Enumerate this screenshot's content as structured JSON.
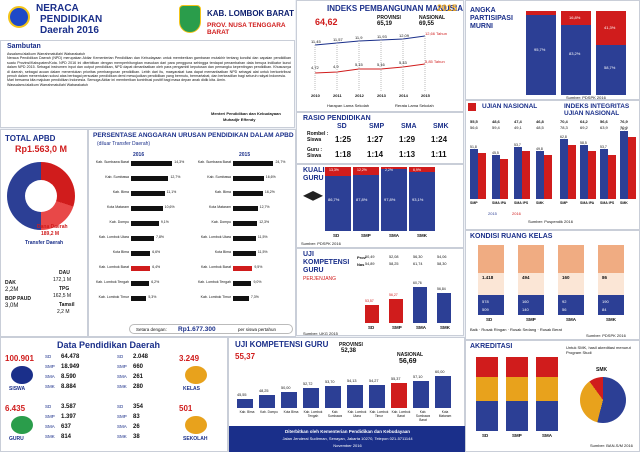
{
  "header": {
    "title1": "NERACA",
    "title2": "PENDIDIKAN",
    "title3": "Daerah 2016",
    "region1": "KAB. LOMBOK BARAT",
    "region2": "PROV. NUSA TENGGARA BARAT"
  },
  "ipm": {
    "title": "INDEKS PEMBANGUNAN MANUSIA",
    "year": "2015",
    "value": "64,62",
    "prov_label": "PROVINSI",
    "prov_value": "65,19",
    "nas_label": "NASIONAL",
    "nas_value": "69,55",
    "top_values": [
      "11,45",
      "11,57",
      "11,9",
      "11,93",
      "12,09"
    ],
    "top_end": "12,66 Tahun",
    "bottom_values": [
      "4,72",
      "4,9",
      "5,15",
      "5,16",
      "5,43"
    ],
    "bottom_end": "5,85 Tahun",
    "years": [
      "2010",
      "2011",
      "2012",
      "2013",
      "2014",
      "2015"
    ],
    "legend1": "Harapan Lama Sekolah",
    "legend2": "Rerata Lama Sekolah"
  },
  "apm": {
    "title1": "ANGKA",
    "title2": "PARTISIPASI",
    "title3": "MURNI",
    "source": "Sumber: PDSPK 2016",
    "cols": [
      {
        "top": "4,3%",
        "bottom": "95,7%"
      },
      {
        "top": "16,8%",
        "bottom": "83,2%"
      },
      {
        "top": "41,3%",
        "bottom": "58,7%"
      }
    ]
  },
  "sambutan": {
    "title": "Sambutan",
    "greeting": "Assalamu'alaikum Warrahmatullahi Wabarakatuh",
    "para1": "Neraca Pendidikan Daerah (NPD) merupakan Aktiar Kementerian Pendidikan dan Kebudayaan untuk memberikan gambaran mutakhir tentang kondisi dan capaian pendidikan suatu Provinsi/Kabupaten/Kota. NPD 2016 ini diterbitkan dengan memperhitungkan masukan dari para pengguna sehingga terdapat penambahan data berupa indikator kunci dalam NPD 2015. Sebagai instrumen input dan output pendidikan, NPD dapat dimanfaatkan oleh para pengambil keputusan dan pemangku kepentingan pendidikan. Khususnya di daerah, sebagai acuan dalam menentukan prioritas pembangunan pendidikan. Lebih dari itu, masyarakat luas dapat memanfaatkan NPD sebagai alat untuk berkontribusi penuh dalam menentukan solusi atas berbagai persoalan pendidikan demi mewujudkan pendidikan yang bermutu, bermartabat, dan berkeadilan bagi seluruh rakyat Indonesia.",
    "para2": "Mari bersama kita majukan pendidikan Indonesia. Semoga Aktiar ini memberikan kontribusi positif bagi masa depan anak didik kita. Amin.",
    "closing": "Wassalamu'alaikum Warrahmatullahi Wabarakatuh",
    "signature1": "Menteri Pendidikan dan Kebudayaan",
    "signature2": "Muhadjir Effendy"
  },
  "apbd": {
    "title": "TOTAL APBD",
    "value": "Rp1.563,0 M",
    "daerah_label": "Dana Daerah",
    "daerah_value": "189,2 M",
    "transfer_label": "Transfer Daerah",
    "dak_label": "DAK",
    "dak_value": "2,2M",
    "bop_label": "BOP PAUD",
    "bop_value": "3,0M",
    "dau_label": "DAU",
    "dau_value": "172,1 M",
    "tpg_label": "TPG",
    "tpg_value": "162,5 M",
    "tamsil_label": "Tamsil",
    "tamsil_value": "2,2 M"
  },
  "anggaran": {
    "title": "PERSENTASE ANGGARAN URUSAN PENDIDIKAN DALAM APBD",
    "subtitle": "(diluar Transfer Daerah)",
    "year1": "2016",
    "year2": "2015",
    "rows": [
      "Kab. Sumbawa Barat",
      "Kab. Sumbawa",
      "Kab. Bima",
      "Kota Mataram",
      "Kab. Dompu",
      "Kab. Lombok Utara",
      "Kota Bima",
      "Kab. Lombok Barat",
      "Kab. Lombok Tengah",
      "Kab. Lombok Timur"
    ],
    "values2016": [
      "14,3%",
      "12,7%",
      "11,1%",
      "10,6%",
      "9,1%",
      "7,8%",
      "6,6%",
      "6,4%",
      "6,2%",
      "5,3%"
    ],
    "values2015": [
      "24,7%",
      "16,6%",
      "16,2%",
      "12,7%",
      "12,3%",
      "11,5%",
      "11,5%",
      "9,5%",
      "9,0%",
      "7,3%"
    ],
    "pct2016": [
      0.86,
      0.78,
      0.7,
      0.66,
      0.58,
      0.48,
      0.4,
      0.4,
      0.38,
      0.32
    ],
    "pct2015": [
      0.92,
      0.7,
      0.68,
      0.56,
      0.55,
      0.52,
      0.52,
      0.44,
      0.42,
      0.36
    ],
    "highlight2016": 7,
    "highlight2015": 7,
    "footer_label": "Setara dengan:",
    "footer_value": "Rp1.677.300",
    "footer_unit": "per siswa pertahun"
  },
  "un": {
    "title": "UJIAN NASIONAL",
    "title2": "INDEKS INTEGRITAS UJIAN NASIONAL",
    "groups": [
      {
        "label": "Pro",
        "a": "55,5",
        "b": "56,6"
      },
      {
        "label": "Nas",
        "a": "48,6",
        "b": "59,4"
      },
      {
        "label": "",
        "a": "47,4",
        "b": "49,1"
      },
      {
        "label": "",
        "a": "46,8",
        "b": "48,5"
      }
    ],
    "int_groups": [
      {
        "a": "70,4",
        "b": "78,3"
      },
      {
        "a": "64,2",
        "b": "69,2"
      },
      {
        "a": "56,6",
        "b": "63,9"
      },
      {
        "a": "76,9",
        "b": "70,9"
      }
    ],
    "cats": [
      "SMP",
      "SMA IPA",
      "SMA IPS",
      "SMK"
    ],
    "legend1": "2015",
    "legend2": "2016",
    "source": "Sumber: Puspendik 2016",
    "bar_vals": [
      "51,8",
      "45,5",
      "53,7",
      "49,8"
    ],
    "bar_vals2": [
      "62,8",
      "58,5",
      "53,7",
      "70,3"
    ]
  },
  "rasio": {
    "title": "RASIO PENDIDIKAN",
    "cols": [
      "SD",
      "SMP",
      "SMA",
      "SMK"
    ],
    "rombel_label": "Rombel : Siswa",
    "guru_label": "Guru : Siswa",
    "rombel": [
      "1:25",
      "1:27",
      "1:29",
      "1:24"
    ],
    "guru": [
      "1:18",
      "1:14",
      "1:13",
      "1:11"
    ]
  },
  "kualifikasi": {
    "title1": "KUALIFIKASI",
    "title2": "GURU",
    "cols": [
      "SD",
      "SMP",
      "SMA",
      "SMK"
    ],
    "blue": [
      "86,7%",
      "87,8%",
      "97,8%",
      "93,1%"
    ],
    "red": [
      "13,3%",
      "12,2%",
      "2,2%",
      "6,9%"
    ],
    "legend1": "≥S1",
    "legend2": "<S1",
    "source": "Sumber: PDSPK 2016"
  },
  "ukg": {
    "title1": "UJI",
    "title2": "KOMPETENSI",
    "title3": "GURU",
    "sub": "PERJENJANG",
    "prov": "Prov",
    "nas": "Nas",
    "prov_vals": [
      "50,49",
      "52,08",
      "56,30",
      "54,06"
    ],
    "nas_vals": [
      "54,89",
      "58,25",
      "61,74",
      "58,30"
    ],
    "bars": [
      "53,57",
      "56,27",
      "60,76",
      "56,84"
    ],
    "cats": [
      "SD",
      "SMP",
      "SMA",
      "SMK"
    ],
    "source": "Sumber: UKG 2015"
  },
  "kondisi": {
    "title": "KONDISI RUANG KELAS",
    "cats": [
      "SD",
      "SMP",
      "SMA",
      "SMK"
    ],
    "good": [
      "1.418",
      "494",
      "160",
      "86"
    ],
    "light": [
      "578",
      "160",
      "92",
      "190"
    ],
    "heavy": [
      "509",
      "140",
      "56",
      "84"
    ],
    "legend": [
      "Baik",
      "Rusak Ringan",
      "Rusak Sedang",
      "Rusak Berat"
    ],
    "source": "Sumber: PDSPK 2016"
  },
  "data_pendidikan": {
    "title": "Data Pendidikan Daerah",
    "siswa_total": "100.901",
    "siswa_label": "SISWA",
    "siswa": [
      {
        "lvl": "SD",
        "v": "64.478"
      },
      {
        "lvl": "SMP",
        "v": "18.949"
      },
      {
        "lvl": "SMA",
        "v": "8.590"
      },
      {
        "lvl": "SMK",
        "v": "8.884"
      }
    ],
    "kelas_total": "3.249",
    "kelas_label": "KELAS",
    "kelas": [
      {
        "lvl": "SD",
        "v": "2.048"
      },
      {
        "lvl": "SMP",
        "v": "660"
      },
      {
        "lvl": "SMA",
        "v": "261"
      },
      {
        "lvl": "SMK",
        "v": "280"
      }
    ],
    "guru_total": "6.435",
    "guru_label": "GURU",
    "guru": [
      {
        "lvl": "SD",
        "v": "3.587"
      },
      {
        "lvl": "SMP",
        "v": "1.397"
      },
      {
        "lvl": "SMA",
        "v": "637"
      },
      {
        "lvl": "SMK",
        "v": "814"
      }
    ],
    "sekolah_total": "501",
    "sekolah_label": "SEKOLAH",
    "sekolah": [
      {
        "lvl": "SD",
        "v": "354"
      },
      {
        "lvl": "SMP",
        "v": "83"
      },
      {
        "lvl": "SMA",
        "v": "26"
      },
      {
        "lvl": "SMK",
        "v": "38"
      }
    ]
  },
  "ukg_daerah": {
    "title": "UJI KOMPETENSI GURU",
    "value": "55,37",
    "prov_label": "PROVINSI",
    "prov_value": "52,38",
    "nas_label": "NASIONAL",
    "nas_value": "56,69",
    "labels": [
      "Kab. Bima",
      "Kab. Dompu",
      "Kota Bima",
      "Kab. Lombok Tengah",
      "Kab. Sumbawa",
      "Kab. Lombok Utara",
      "Kab. Lombok Timur",
      "Kab. Lombok Barat",
      "Kab. Sumbawa Barat",
      "Kota Mataram"
    ],
    "values": [
      "45,55",
      "48,25",
      "50,00",
      "52,72",
      "53,70",
      "54,13",
      "54,27",
      "55,37",
      "57,10",
      "60,00"
    ],
    "footer1": "Diterbitkan oleh Kementerian Pendidikan dan Kebudayaan",
    "footer2": "Jalan Jenderal Sudirman, Senayan, Jakarta 10270, Telepon 021-5711144",
    "footer3": "November 2016"
  },
  "akreditasi": {
    "title": "AKREDITASI",
    "note": "Untuk SMK, hasil akreditasi menurut Program Studi",
    "cats": [
      "SD",
      "SMP",
      "SMA",
      "SMK"
    ],
    "source": "Sumber: BAN-S/M 2016"
  }
}
